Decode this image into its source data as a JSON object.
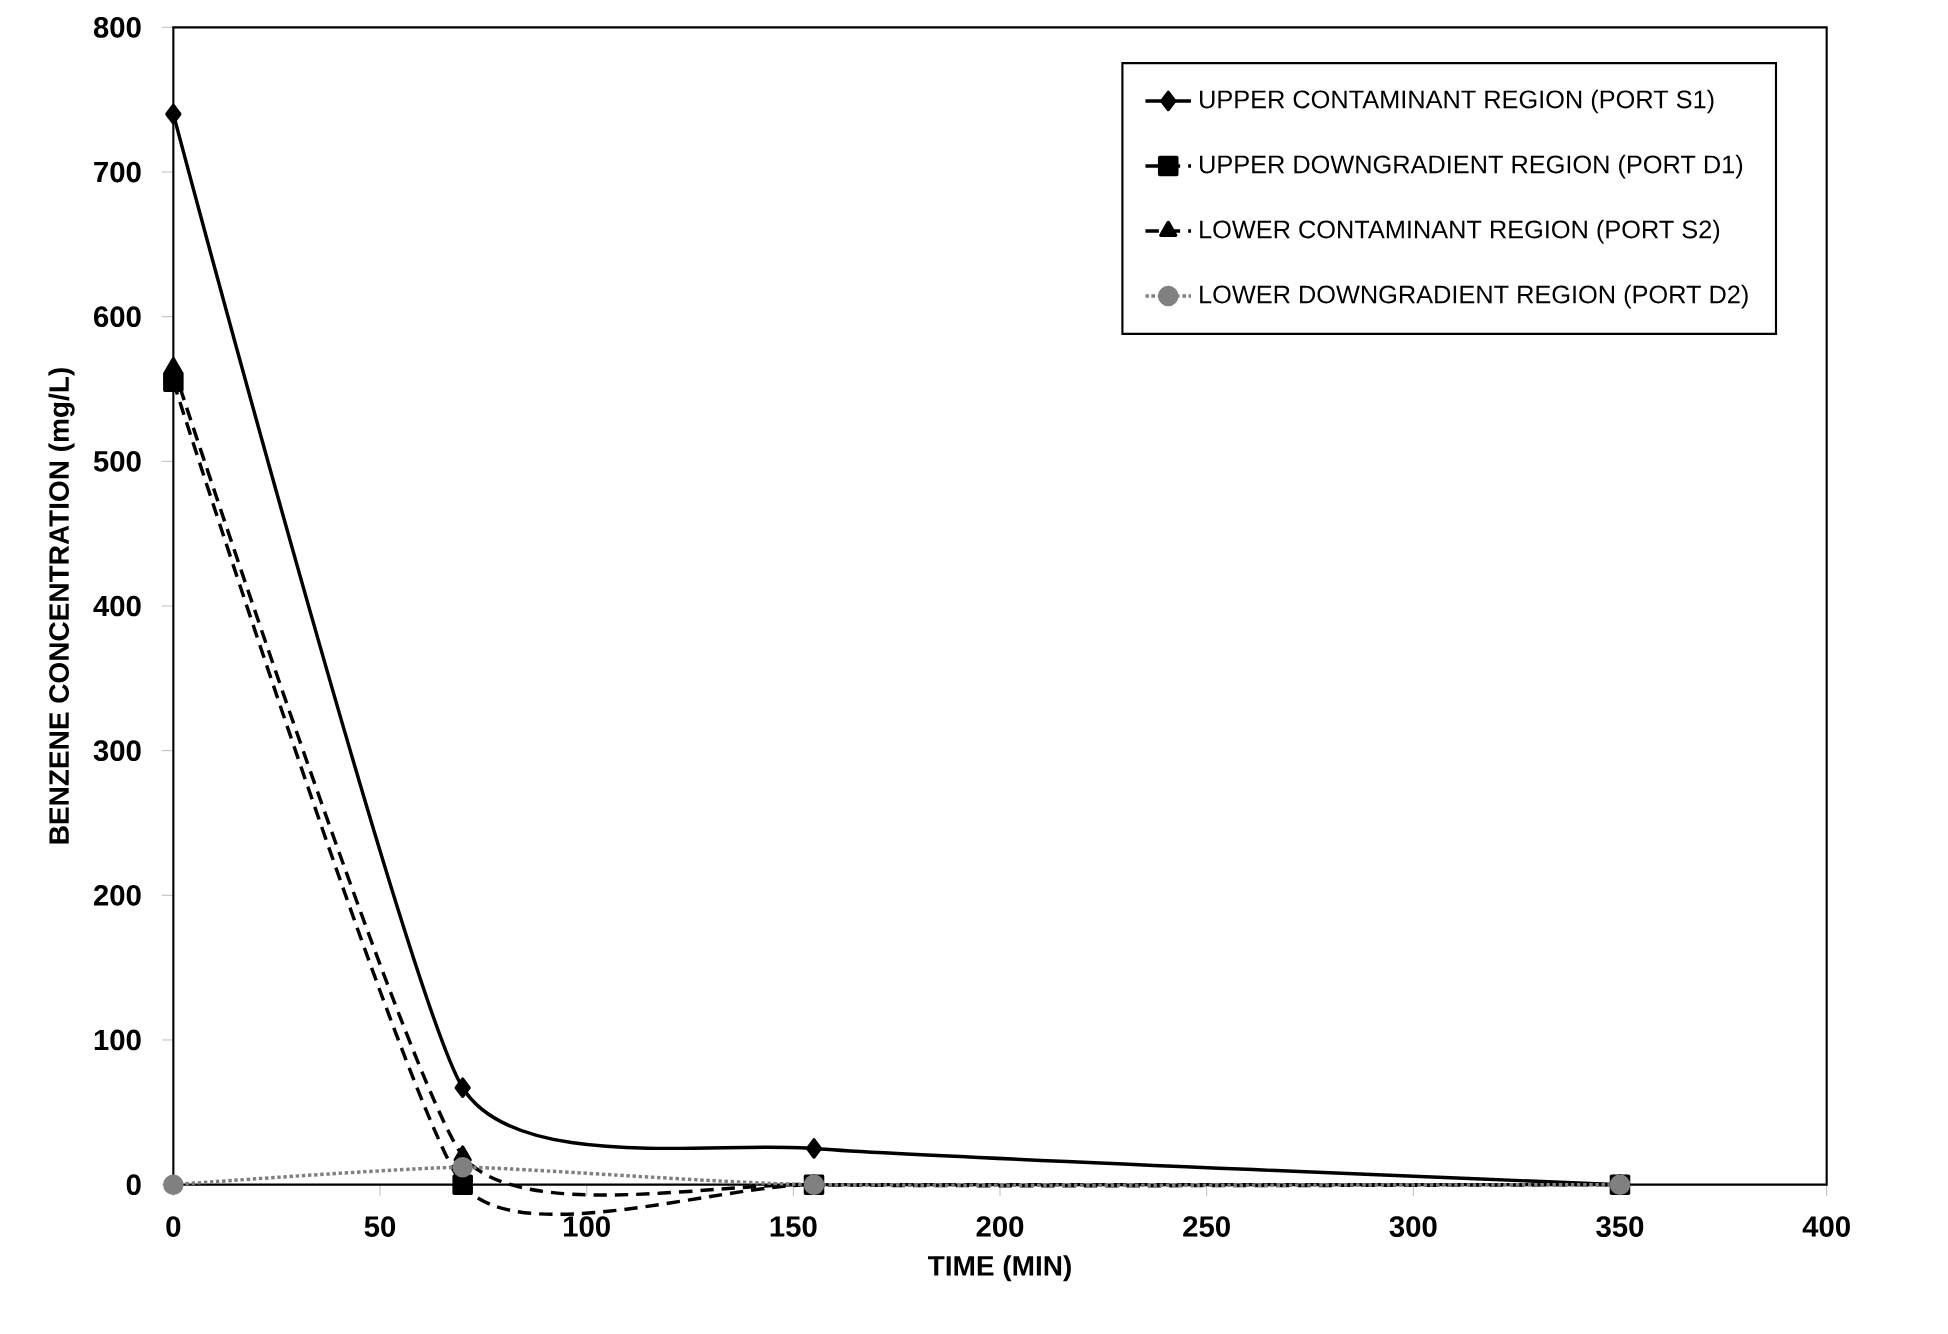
{
  "chart_data": {
    "type": "line",
    "xlabel": "TIME (MIN)",
    "ylabel": "BENZENE CONCENTRATION (mg/L)",
    "xlim": [
      0,
      400
    ],
    "xticks": [
      0,
      50,
      100,
      150,
      200,
      250,
      300,
      350,
      400
    ],
    "ylim": [
      0,
      800
    ],
    "yticks": [
      0,
      100,
      200,
      300,
      400,
      500,
      600,
      700,
      800
    ],
    "grid": false,
    "legend": "top right",
    "series": [
      {
        "name": "UPPER CONTAMINANT REGION (PORT S1)",
        "color": "#000000",
        "marker": "diamond",
        "line_style": "solid",
        "x": [
          0,
          70,
          155,
          350
        ],
        "values": [
          740,
          67,
          25,
          0
        ]
      },
      {
        "name": "UPPER DOWNGRADIENT REGION (PORT D1)",
        "color": "#000000",
        "marker": "square",
        "line_style": "dashed",
        "x": [
          0,
          70,
          155,
          350
        ],
        "values": [
          555,
          0,
          0,
          0
        ]
      },
      {
        "name": "LOWER CONTAMINANT REGION (PORT S2)",
        "color": "#000000",
        "marker": "triangle",
        "line_style": "dashed",
        "x": [
          0,
          70,
          155,
          350
        ],
        "values": [
          565,
          20,
          0,
          0
        ]
      },
      {
        "name": "LOWER DOWNGRADIENT REGION (PORT D2)",
        "color": "#808080",
        "marker": "circle",
        "line_style": "dotted",
        "x": [
          0,
          70,
          155,
          350
        ],
        "values": [
          0,
          12,
          0,
          0
        ]
      }
    ]
  }
}
